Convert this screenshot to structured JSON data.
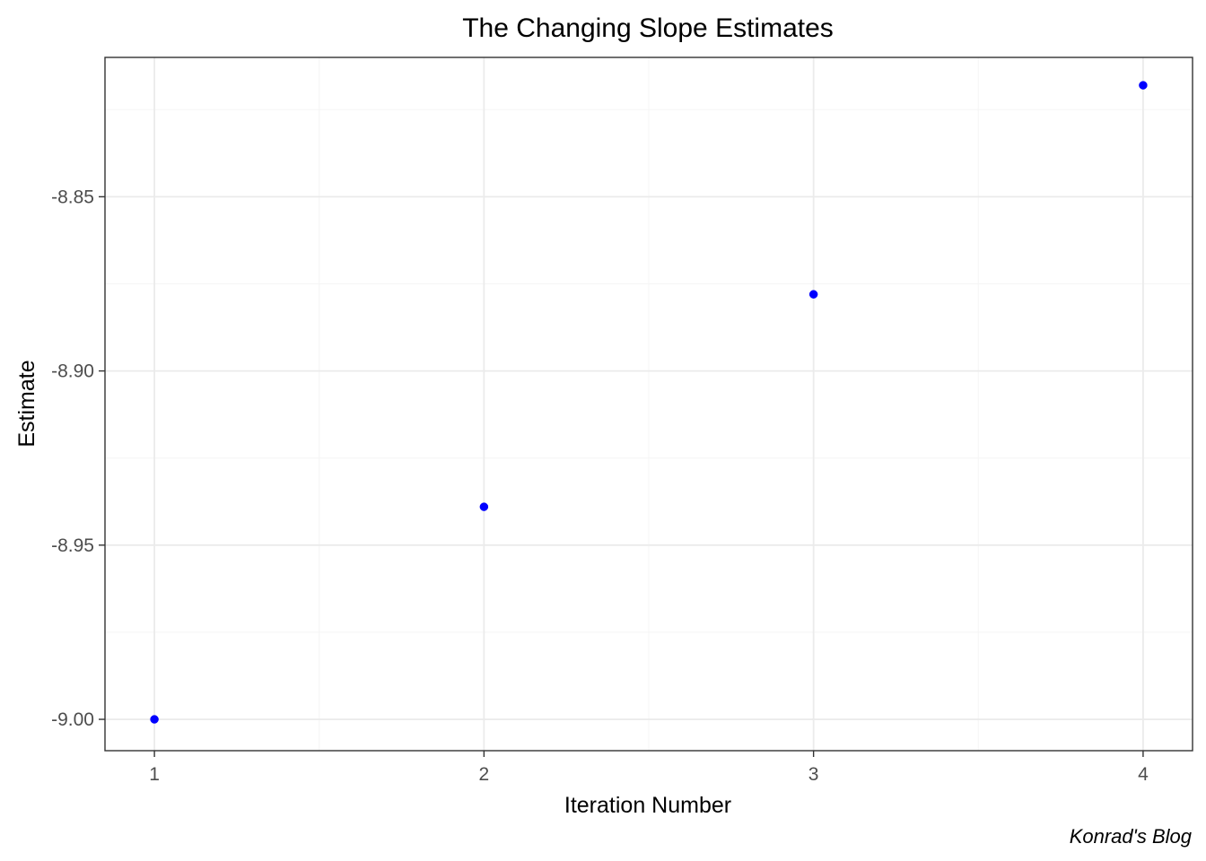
{
  "chart_data": {
    "type": "scatter",
    "title": "The Changing Slope Estimates",
    "xlabel": "Iteration Number",
    "ylabel": "Estimate",
    "caption": "Konrad's Blog",
    "series": [
      {
        "x": [
          1,
          2,
          3,
          4
        ],
        "y": [
          -9.0,
          -8.939,
          -8.878,
          -8.818
        ]
      }
    ],
    "xlim": [
      0.85,
      4.15
    ],
    "ylim": [
      -9.009,
      -8.81
    ],
    "x_ticks": [
      1,
      2,
      3,
      4
    ],
    "x_tick_labels": [
      "1",
      "2",
      "3",
      "4"
    ],
    "y_ticks": [
      -9.0,
      -8.95,
      -8.9,
      -8.85
    ],
    "y_tick_labels": [
      "-9.00",
      "-8.95",
      "-8.90",
      "-8.85"
    ],
    "y_minor_ticks": [
      -8.975,
      -8.925,
      -8.875,
      -8.825
    ],
    "x_minor_ticks": [
      1.5,
      2.5,
      3.5
    ],
    "grid": true,
    "legend": "none",
    "colors": {
      "point": "#0000ff",
      "grid_major": "#ebebeb",
      "grid_minor": "#f5f5f5",
      "panel_border": "#333333",
      "tick_text": "#4d4d4d"
    }
  }
}
